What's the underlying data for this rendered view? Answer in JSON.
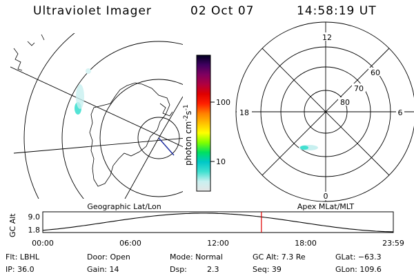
{
  "header": {
    "title": "Ultraviolet Imager",
    "date": "02 Oct 07",
    "time": "14:58:19 UT"
  },
  "colorbar": {
    "label": "photon cm",
    "label_sup1": "-2",
    "label_mid": "s",
    "label_sup2": "-1",
    "ticks": [
      "100",
      "10"
    ],
    "stops": [
      "#e6e6e6",
      "#c8f0f0",
      "#40e0d0",
      "#00c8c8",
      "#00e060",
      "#80ff00",
      "#ffff00",
      "#ffc000",
      "#ff8000",
      "#ff2000",
      "#e00000",
      "#b00040",
      "#800060",
      "#400060",
      "#000020"
    ]
  },
  "map_labels": {
    "geographic": "Geographic Lat/Lon",
    "apex": "Apex MLat/MLT"
  },
  "polar": {
    "mlt_labels": {
      "top": "12",
      "left": "18",
      "right": "6",
      "bottom": "0"
    },
    "lat_labels": [
      "60",
      "70",
      "80"
    ]
  },
  "altitude_plot": {
    "ylabel": "GC Alt",
    "yticks": [
      "9.0",
      "1.8"
    ],
    "xticks": [
      "00:00",
      "06:00",
      "12:00",
      "18:00",
      "23:59"
    ],
    "current_marker_hours": 14.97
  },
  "info": {
    "flt": "Flt: LBHL",
    "door": "Door: Open",
    "mode": "Mode: Normal",
    "gcalt": "GC Alt: 7.3 Re",
    "glat": "GLat: −63.3",
    "ip": "IP: 36.0",
    "gain": "Gain: 14",
    "dsp_label": "Dsp:",
    "dsp_value": "2.3",
    "seq": "Seq: 39",
    "glon": "GLon: 109.6"
  }
}
